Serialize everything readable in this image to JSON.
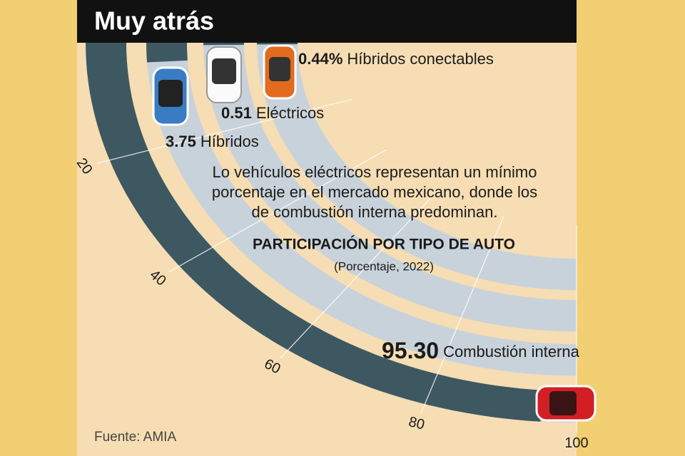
{
  "chart_data": {
    "type": "radial_bar",
    "title": "Muy atrás",
    "description": [
      "Lo vehículos eléctricos representan un mínimo",
      "porcentaje en el mercado mexicano, donde los",
      "de combustión interna predominan."
    ],
    "subtitle": "PARTICIPACIÓN POR TIPO DE AUTO",
    "unit_note": "(Porcentaje, 2022)",
    "source": "Fuente: AMIA",
    "categories": [
      "Combustión interna",
      "Híbridos",
      "Eléctricos",
      "Híbridos conectables"
    ],
    "values": [
      95.3,
      3.75,
      0.51,
      0.44
    ],
    "value_labels": [
      "95.30",
      "3.75",
      "0.51",
      "0.44%"
    ],
    "color": "#3e5862",
    "track_color": "#c8d2da",
    "xlim": [
      0,
      100
    ],
    "xticks": [
      20,
      40,
      60,
      80,
      100
    ]
  }
}
